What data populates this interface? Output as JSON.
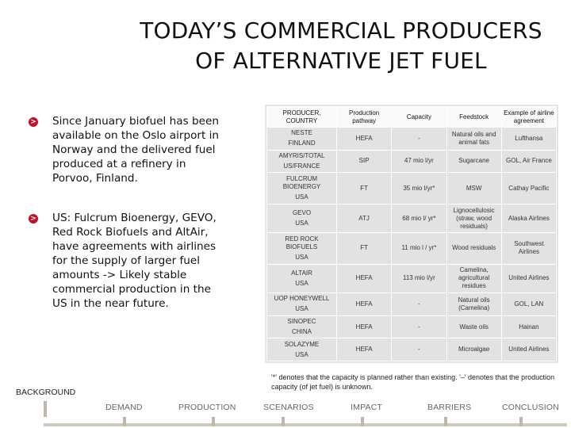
{
  "title": {
    "line1": "TODAY’S COMMERCIAL PRODUCERS",
    "line2": "OF ALTERNATIVE JET FUEL"
  },
  "bullets": [
    {
      "marker": ">",
      "text": "Since January biofuel has been available on the Oslo airport in Norway and the delivered fuel produced at a refinery in Porvoo, Finland."
    },
    {
      "marker": ">",
      "text": "US: Fulcrum Bioenergy, GEVO, Red Rock Biofuels and AltAir, have agreements with airlines for the supply of larger fuel amounts -> Likely stable commercial production in the US in the near future."
    }
  ],
  "table": {
    "headers": [
      "PRODUCER, COUNTRY",
      "Production pathway",
      "Capacity",
      "Feedstock",
      "Example of airline agreement"
    ],
    "rows": [
      {
        "producer": "NESTE",
        "country": "FINLAND",
        "pathway": "HEFA",
        "capacity": "-",
        "feedstock": "Natural oils and animal fats",
        "airline": "Lufthansa"
      },
      {
        "producer": "AMYRIS/TOTAL",
        "country": "US/FRANCE",
        "pathway": "SIP",
        "capacity": "47 mio l/yr",
        "feedstock": "Sugarcane",
        "airline": "GOL, Air France"
      },
      {
        "producer": "FULCRUM BIOENERGY",
        "country": "USA",
        "pathway": "FT",
        "capacity": "35 mio l/yr*",
        "feedstock": "MSW",
        "airline": "Cathay Pacific"
      },
      {
        "producer": "GEVO",
        "country": "USA",
        "pathway": "ATJ",
        "capacity": "68 mio l/ yr*",
        "feedstock": "Lignocellulosic (straw, wood residuals)",
        "airline": "Alaska Airlines"
      },
      {
        "producer": "RED ROCK BIOFUELS",
        "country": "USA",
        "pathway": "FT",
        "capacity": "11 mio l / yr*",
        "feedstock": "Wood residuals",
        "airline": "Southwest Airlines"
      },
      {
        "producer": "ALTAIR",
        "country": "USA",
        "pathway": "HEFA",
        "capacity": "113 mio l/yr",
        "feedstock": "Camelina, agricultural residues",
        "airline": "United Airlines"
      },
      {
        "producer": "UOP HONEYWELL",
        "country": "USA",
        "pathway": "HEFA",
        "capacity": "-",
        "feedstock": "Natural oils (Camelina)",
        "airline": "GOL, LAN"
      },
      {
        "producer": "SINOPEC",
        "country": "CHINA",
        "pathway": "HEFA",
        "capacity": "-",
        "feedstock": "Waste oils",
        "airline": "Hainan"
      },
      {
        "producer": "SOLAZYME",
        "country": "USA",
        "pathway": "HEFA",
        "capacity": "-",
        "feedstock": "Microalgae",
        "airline": "United Airlines"
      }
    ]
  },
  "footnote": "'*' denotes that the capacity is planned rather than existing. '–' denotes that the production capacity (of jet fuel) is unknown.",
  "nav": {
    "current_section": "BACKGROUND",
    "items": [
      "DEMAND",
      "PRODUCTION",
      "SCENARIOS",
      "IMPACT",
      "BARRIERS",
      "CONCLUSION"
    ]
  }
}
